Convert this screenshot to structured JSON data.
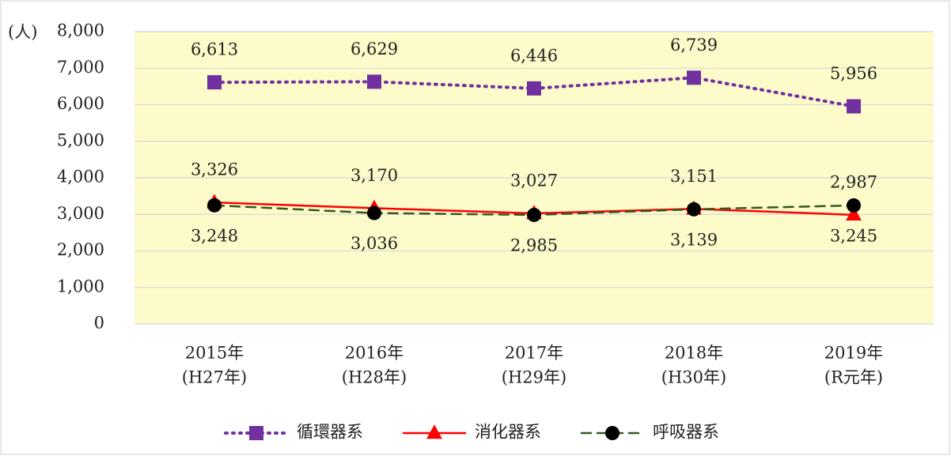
{
  "chart_data": {
    "type": "line",
    "y_unit": "(人)",
    "categories": [
      [
        "2015年",
        "(H27年)"
      ],
      [
        "2016年",
        "(H28年)"
      ],
      [
        "2017年",
        "(H29年)"
      ],
      [
        "2018年",
        "(H30年)"
      ],
      [
        "2019年",
        "(R元年)"
      ]
    ],
    "series": [
      {
        "name": "循環器系",
        "color": "#7030a0",
        "marker": "square",
        "dash": "dotted",
        "label_pos": "above",
        "values": [
          6613,
          6629,
          6446,
          6739,
          5956
        ],
        "value_labels": [
          "6,613",
          "6,629",
          "6,446",
          "6,739",
          "5,956"
        ]
      },
      {
        "name": "消化器系",
        "color": "#ff0000",
        "marker": "triangle",
        "dash": "solid",
        "label_pos": "above",
        "values": [
          3326,
          3170,
          3027,
          3151,
          2987
        ],
        "value_labels": [
          "3,326",
          "3,170",
          "3,027",
          "3,151",
          "2,987"
        ]
      },
      {
        "name": "呼吸器系",
        "color": "#375623",
        "marker": "circle",
        "marker_color": "#000000",
        "dash": "dashed",
        "label_pos": "below",
        "values": [
          3248,
          3036,
          2985,
          3139,
          3245
        ],
        "value_labels": [
          "3,248",
          "3,036",
          "2,985",
          "3,139",
          "3,245"
        ]
      }
    ],
    "ylim": [
      0,
      8000
    ],
    "yticks": [
      0,
      {
        "value": 1000,
        "label": "1,000"
      },
      {
        "value": 2000,
        "label": "2,000"
      },
      {
        "value": 3000,
        "label": "3,000"
      },
      {
        "value": 4000,
        "label": "4,000"
      },
      {
        "value": 5000,
        "label": "5,000"
      },
      {
        "value": 6000,
        "label": "6,000"
      },
      {
        "value": 7000,
        "label": "7,000"
      },
      {
        "value": 8000,
        "label": "8,000"
      }
    ],
    "grid": true,
    "legend": "bottom",
    "plot_background": "#fdfbc9"
  }
}
